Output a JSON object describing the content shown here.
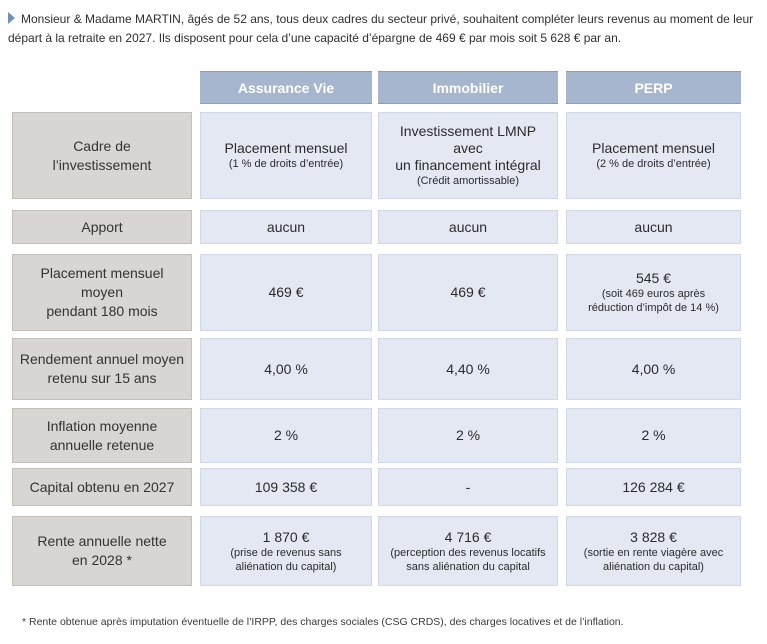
{
  "intro": {
    "text": "Monsieur & Madame MARTIN, âgés de 52 ans, tous deux cadres du secteur privé, souhaitent compléter leurs revenus au moment de leur départ à la retraite en 2027. Ils disposent pour cela d’une capacité d’épargne de 469 € par mois soit 5 628 € par an."
  },
  "columns": [
    "Assurance Vie",
    "Immobilier",
    "PERP"
  ],
  "rows": [
    {
      "label": "Cadre de\nl’investissement",
      "cells": [
        {
          "main": "Placement mensuel",
          "sub": "(1 % de droits d’entrée)"
        },
        {
          "main": "Investissement LMNP avec\nun financement intégral",
          "sub": "(Crédit amortissable)"
        },
        {
          "main": "Placement mensuel",
          "sub": "(2 % de droits d’entrée)"
        }
      ]
    },
    {
      "label": "Apport",
      "cells": [
        {
          "main": "aucun",
          "sub": ""
        },
        {
          "main": "aucun",
          "sub": ""
        },
        {
          "main": "aucun",
          "sub": ""
        }
      ]
    },
    {
      "label": "Placement mensuel moyen\npendant 180 mois",
      "cells": [
        {
          "main": "469 €",
          "sub": ""
        },
        {
          "main": "469 €",
          "sub": ""
        },
        {
          "main": "545 €",
          "sub": "(soit 469 euros après\nréduction d’impôt de 14 %)"
        }
      ]
    },
    {
      "label": "Rendement annuel moyen\nretenu sur 15 ans",
      "cells": [
        {
          "main": "4,00 %",
          "sub": ""
        },
        {
          "main": "4,40 %",
          "sub": ""
        },
        {
          "main": "4,00 %",
          "sub": ""
        }
      ]
    },
    {
      "label": "Inflation moyenne\nannuelle retenue",
      "cells": [
        {
          "main": "2 %",
          "sub": ""
        },
        {
          "main": "2 %",
          "sub": ""
        },
        {
          "main": "2 %",
          "sub": ""
        }
      ]
    },
    {
      "label": "Capital obtenu en 2027",
      "cells": [
        {
          "main": "109 358 €",
          "sub": ""
        },
        {
          "main": "-",
          "sub": ""
        },
        {
          "main": "126 284 €",
          "sub": ""
        }
      ]
    },
    {
      "label": "Rente annuelle nette\nen 2028 *",
      "cells": [
        {
          "main": "1 870 €",
          "sub": "(prise de revenus sans\naliénation du capital)"
        },
        {
          "main": "4 716 €",
          "sub": "(perception des revenus locatifs\nsans aliénation du capital"
        },
        {
          "main": "3 828 €",
          "sub": "(sortie en rente viagère avec\naliénation du capital)"
        }
      ]
    }
  ],
  "footnote": "* Rente obtenue après imputation éventuelle de l’IRPP, des charges sociales (CSG CRDS), des charges locatives et de l’inflation."
}
